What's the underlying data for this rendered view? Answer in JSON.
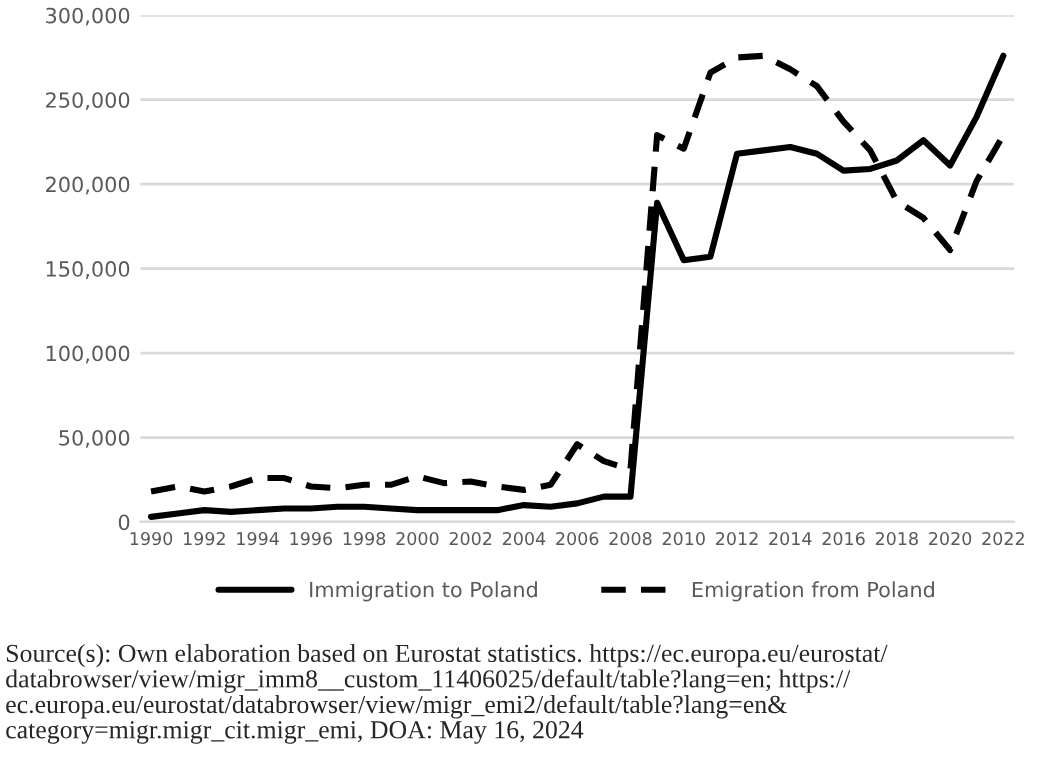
{
  "chart_data": {
    "type": "line",
    "x": [
      1990,
      1991,
      1992,
      1993,
      1994,
      1995,
      1996,
      1997,
      1998,
      1999,
      2000,
      2001,
      2002,
      2003,
      2004,
      2005,
      2006,
      2007,
      2008,
      2009,
      2010,
      2011,
      2012,
      2013,
      2014,
      2015,
      2016,
      2017,
      2018,
      2019,
      2020,
      2021,
      2022
    ],
    "series": [
      {
        "name": "Immigration to Poland",
        "color": "#000000",
        "line_style": "solid",
        "values": [
          3000,
          5000,
          7000,
          6000,
          7000,
          8000,
          8000,
          9000,
          9000,
          8000,
          7000,
          7000,
          7000,
          7000,
          10000,
          9000,
          11000,
          15000,
          15000,
          189000,
          155000,
          157000,
          218000,
          220000,
          222000,
          218000,
          208000,
          209000,
          214000,
          226000,
          211000,
          240000,
          276000
        ]
      },
      {
        "name": "Emigration from Poland",
        "color": "#000000",
        "line_style": "dashed",
        "values": [
          18000,
          21000,
          18000,
          21000,
          26000,
          26000,
          21000,
          20000,
          22000,
          22000,
          27000,
          23000,
          24000,
          21000,
          19000,
          22000,
          46000,
          36000,
          31000,
          229000,
          221000,
          266000,
          275000,
          276000,
          268000,
          258000,
          237000,
          220000,
          190000,
          180000,
          161000,
          202000,
          229000
        ]
      }
    ],
    "xlim": [
      1989.6,
      2022.4
    ],
    "xticks": [
      1990,
      1992,
      1994,
      1996,
      1998,
      2000,
      2002,
      2004,
      2006,
      2008,
      2010,
      2012,
      2014,
      2016,
      2018,
      2020,
      2022
    ],
    "ylim": [
      0,
      300000
    ],
    "yticks": [
      {
        "value": 0,
        "label": "0"
      },
      {
        "value": 50000,
        "label": "50,000"
      },
      {
        "value": 100000,
        "label": "100,000"
      },
      {
        "value": 150000,
        "label": "150,000"
      },
      {
        "value": 200000,
        "label": "200,000"
      },
      {
        "value": 250000,
        "label": "250,000"
      },
      {
        "value": 300000,
        "label": "300,000"
      }
    ],
    "grid": "y",
    "legend": "bottom",
    "marker": "none",
    "annotations": [
      "Source(s): Own elaboration based on Eurostat statistics. https://ec.europa.eu/eurostat/\ndatabrowser/view/migr_imm8__custom_11406025/default/table?lang=en; https://\nec.europa.eu/eurostat/databrowser/view/migr_emi2/default/table?lang=en&\ncategory=migr.migr_cit.migr_emi, DOA: May 16, 2024"
    ]
  }
}
